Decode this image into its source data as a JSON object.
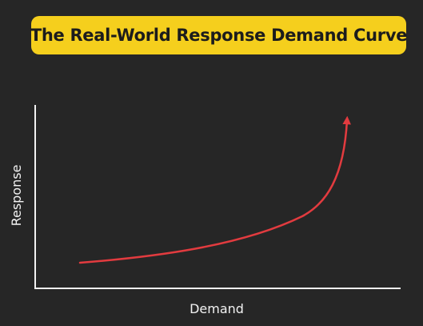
{
  "title": "The Real-World Response Demand Curve",
  "colors": {
    "background": "#262626",
    "banner": "#f5cf1d",
    "title_text": "#1c1c1c",
    "axis": "#f2f2f2",
    "curve": "#e23b3f"
  },
  "axes": {
    "x_label": "Demand",
    "y_label": "Response"
  }
}
